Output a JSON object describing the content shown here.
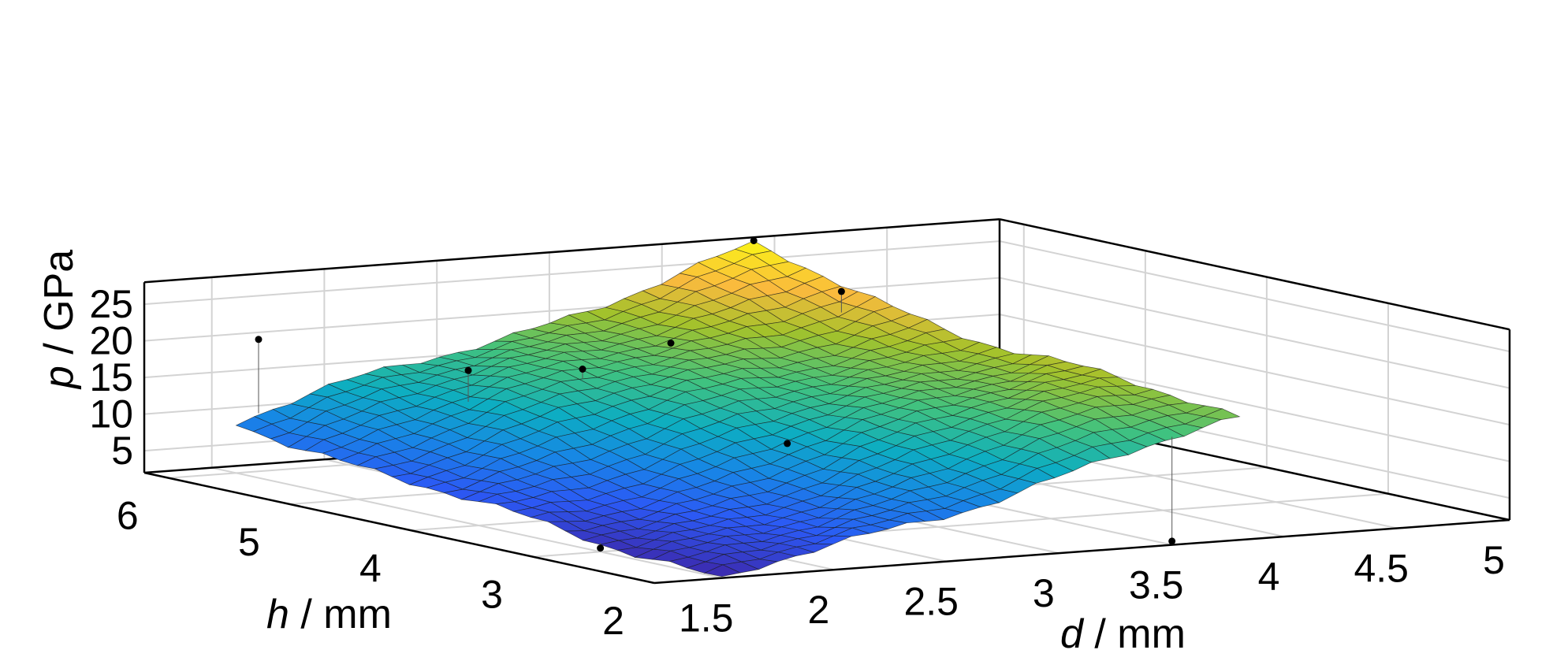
{
  "chart_data": {
    "type": "surface3d",
    "zlabel": {
      "var": "p",
      "unit": " / GPa"
    },
    "xlabel": {
      "var": "d",
      "unit": " / mm"
    },
    "ylabel": {
      "var": "h",
      "unit": " / mm"
    },
    "xlim": [
      1.2,
      5.0
    ],
    "ylim": [
      2.0,
      6.2
    ],
    "zlim": [
      2,
      28
    ],
    "x_ticks": [
      "1.5",
      "2",
      "2.5",
      "3",
      "3.5",
      "4",
      "4.5",
      "5"
    ],
    "x_tick_values": [
      1.5,
      2,
      2.5,
      3,
      3.5,
      4,
      4.5,
      5
    ],
    "y_ticks": [
      "2",
      "3",
      "4",
      "5",
      "6"
    ],
    "y_tick_values": [
      2,
      3,
      4,
      5,
      6
    ],
    "z_ticks": [
      "5",
      "10",
      "15",
      "20",
      "25"
    ],
    "z_tick_values": [
      5,
      10,
      15,
      20,
      25
    ],
    "grid": true,
    "colormap": "parula",
    "surface_x_range": [
      1.5,
      3.8
    ],
    "surface_y_range": [
      2.0,
      6.0
    ],
    "surface_grid_size": [
      29,
      29
    ],
    "surface_fit": {
      "intercept": 1.0,
      "dx": 7.5,
      "dy": 2.1
    },
    "scatter_points": [
      {
        "x": 1.5,
        "y": 3.0,
        "z": 2.5
      },
      {
        "x": 1.6,
        "y": 6.0,
        "z": 20.0
      },
      {
        "x": 2.1,
        "y": 5.2,
        "z": 17.5
      },
      {
        "x": 2.5,
        "y": 5.0,
        "z": 17.5
      },
      {
        "x": 3.0,
        "y": 5.2,
        "z": 19.2
      },
      {
        "x": 2.6,
        "y": 3.5,
        "z": 12.5
      },
      {
        "x": 3.5,
        "y": 2.0,
        "z": 2.5
      },
      {
        "x": 3.65,
        "y": 5.0,
        "z": 25.5
      },
      {
        "x": 3.8,
        "y": 6.0,
        "z": 28.5
      }
    ]
  }
}
